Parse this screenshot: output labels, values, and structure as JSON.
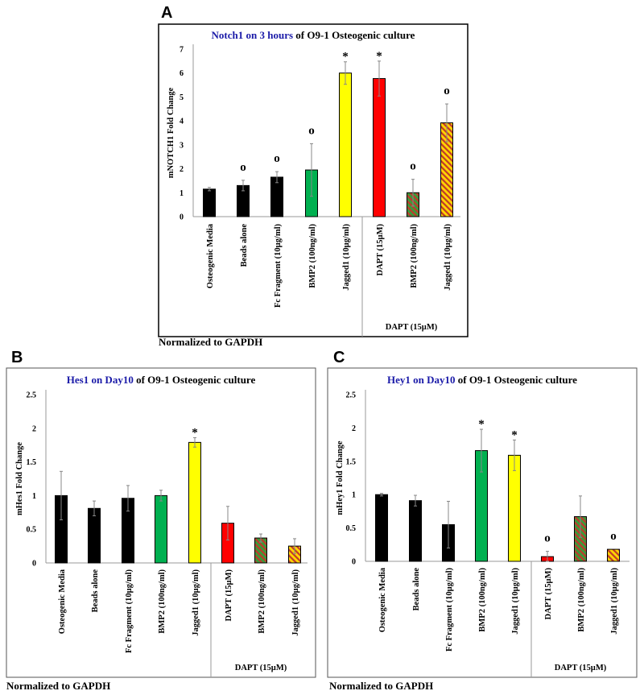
{
  "colors": {
    "title_highlight": "#1a1aa8",
    "black_bar": "#000000",
    "green_bar": "#00b050",
    "yellow_bar": "#ffff00",
    "red_bar": "#ff0000",
    "stripe_red": "#c0392b",
    "stripe_orange": "#ffc000"
  },
  "chart_data": [
    {
      "panel": "A",
      "type": "bar",
      "title_highlight": "Notch1 on 3 hours",
      "title_rest": " of O9-1 Osteogenic culture",
      "ylabel": "mNOTCH1 Fold Change",
      "ylim": [
        0,
        7
      ],
      "yticks": [
        "0",
        "1",
        "2",
        "3",
        "4",
        "5",
        "6",
        "7"
      ],
      "categories": [
        "Osteogenic Media",
        "Beads alone",
        "Fc Fragment (10µg/ml)",
        "BMP2 (100ng/ml)",
        "Jagged1 (10µg/ml)",
        "DAPT (15µM)",
        "BMP2 (100ng/ml)",
        "Jagged1 (10µg/ml)"
      ],
      "values": [
        1.15,
        1.3,
        1.65,
        1.95,
        6.0,
        5.77,
        1.0,
        3.92
      ],
      "error": [
        0.07,
        0.22,
        0.23,
        1.1,
        0.47,
        0.73,
        0.56,
        0.79
      ],
      "fills": [
        "black",
        "black",
        "black",
        "green",
        "yellow",
        "red",
        "green-striped",
        "orange-striped"
      ],
      "markers": [
        "",
        "o",
        "o",
        "o",
        "*",
        "*",
        "o",
        "o"
      ],
      "group_label": "DAPT (15µM)",
      "group_start_index": 5,
      "footnote": "Normalized to GAPDH"
    },
    {
      "panel": "B",
      "type": "bar",
      "title_highlight": "Hes1 on Day10",
      "title_rest": " of O9-1 Osteogenic culture",
      "ylabel": "mHes1 Fold Change",
      "ylim": [
        0,
        2.5
      ],
      "yticks": [
        "0",
        "0.5",
        "1",
        "1.5",
        "2",
        "2.5"
      ],
      "categories": [
        "Osteogenic Media",
        "Beads alone",
        "Fc Fragment (10µg/ml)",
        "BMP2 (100ng/ml)",
        "Jagged1 (10µg/ml)",
        "DAPT (15µM)",
        "BMP2 (100ng/ml)",
        "Jagged1 (10µg/ml)"
      ],
      "values": [
        1.0,
        0.81,
        0.96,
        1.0,
        1.79,
        0.59,
        0.37,
        0.25
      ],
      "error": [
        0.36,
        0.11,
        0.19,
        0.08,
        0.07,
        0.25,
        0.06,
        0.11
      ],
      "fills": [
        "black",
        "black",
        "black",
        "green",
        "yellow",
        "red",
        "green-striped",
        "orange-striped"
      ],
      "markers": [
        "",
        "",
        "",
        "",
        "*",
        "",
        "",
        ""
      ],
      "group_label": "DAPT (15µM)",
      "group_start_index": 5,
      "footnote": "Normalized to GAPDH"
    },
    {
      "panel": "C",
      "type": "bar",
      "title_highlight": "Hey1 on Day10",
      "title_rest": " of O9-1 Osteogenic culture",
      "ylabel": "mHey1 Fold Change",
      "ylim": [
        0,
        2.5
      ],
      "yticks": [
        "0",
        "0.5",
        "1",
        "1.5",
        "2",
        "2.5"
      ],
      "categories": [
        "Osteogenic Media",
        "Beads alone",
        "Fc Fragment (10µg/ml)",
        "BMP2 (100ng/ml)",
        "Jagged1 (10µg/ml)",
        "DAPT (15µM)",
        "BMP2 (100ng/ml)",
        "Jagged1 (10µg/ml)"
      ],
      "values": [
        1.0,
        0.91,
        0.55,
        1.66,
        1.59,
        0.07,
        0.67,
        0.18
      ],
      "error": [
        0.02,
        0.08,
        0.35,
        0.32,
        0.23,
        0.08,
        0.31,
        0.0
      ],
      "fills": [
        "black",
        "black",
        "black",
        "green",
        "yellow",
        "red",
        "green-striped",
        "orange-striped"
      ],
      "markers": [
        "",
        "",
        "",
        "*",
        "*",
        "o",
        "",
        "o"
      ],
      "group_label": "DAPT (15µM)",
      "group_start_index": 5,
      "footnote": "Normalized to GAPDH"
    }
  ]
}
